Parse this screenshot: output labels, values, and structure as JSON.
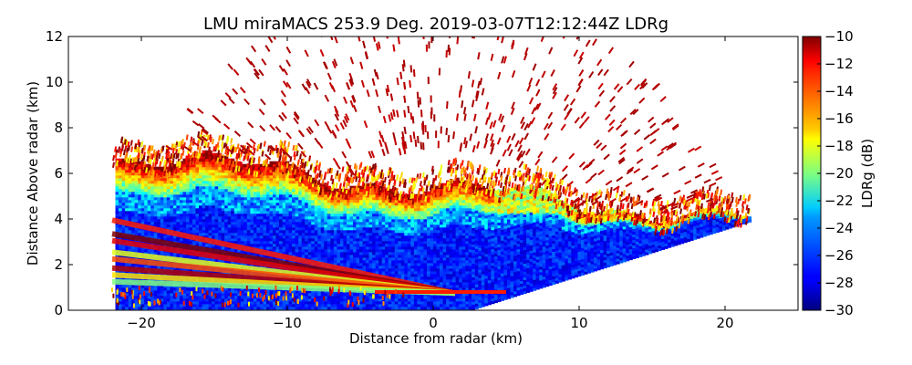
{
  "chart_data": {
    "type": "heatmap",
    "title": "LMU miraMACS 253.9 Deg. 2019-03-07T12:12:44Z  LDRg",
    "xlabel": "Distance from radar (km)",
    "ylabel": "Distance Above radar  (km)",
    "xlim": [
      -25,
      25
    ],
    "ylim": [
      0,
      12
    ],
    "x_ticks": [
      -20,
      -10,
      0,
      10,
      20
    ],
    "x_tick_labels": [
      "−20",
      "−10",
      "0",
      "10",
      "20"
    ],
    "y_ticks": [
      0,
      2,
      4,
      6,
      8,
      10,
      12
    ],
    "y_tick_labels": [
      "0",
      "2",
      "4",
      "6",
      "8",
      "10",
      "12"
    ],
    "colorbar": {
      "label": "LDRg (dB)",
      "range": [
        -30,
        -10
      ],
      "ticks": [
        -30,
        -28,
        -26,
        -24,
        -22,
        -20,
        -18,
        -16,
        -14,
        -12,
        -10
      ],
      "tick_labels": [
        "−30",
        "−28",
        "−26",
        "−24",
        "−22",
        "−20",
        "−18",
        "−16",
        "−14",
        "−12",
        "−10"
      ],
      "colormap": "jet"
    },
    "scan": {
      "left_edge_x": -22,
      "right_edge_x": 21.7,
      "left_elevation_top": 6.8,
      "right_elevation_top": 3.9
    },
    "regions": [
      {
        "name": "cloud core",
        "x": [
          -22,
          21.5
        ],
        "y": [
          0.5,
          5.0
        ],
        "ldr": -28
      },
      {
        "name": "cloud top",
        "x": [
          -22,
          21.5
        ],
        "y": [
          4.5,
          7.0
        ],
        "ldr": -20
      },
      {
        "name": "melting layer bands",
        "x": [
          -22,
          3
        ],
        "y": [
          0.3,
          3.6
        ],
        "ldr": -12
      },
      {
        "name": "sparse echoes above cloud",
        "x": [
          -20,
          20
        ],
        "y": [
          6.5,
          12
        ],
        "ldr": -10
      }
    ]
  }
}
